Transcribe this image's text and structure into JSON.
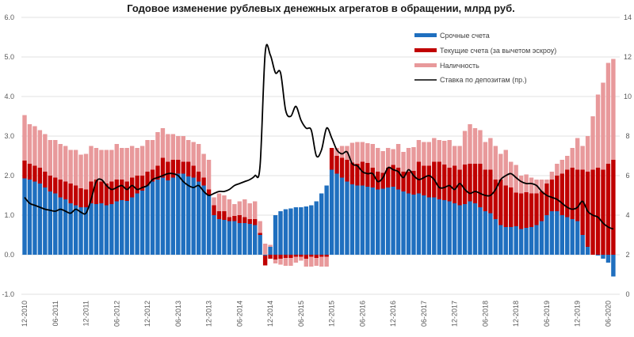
{
  "chart_data": {
    "type": "bar",
    "title": "Годовое изменение рублевых денежных агрегатов в обращении, млрд руб.",
    "start_month": "12-2010",
    "x_tick_labels": [
      "12-2010",
      "06-2011",
      "12-2011",
      "06-2012",
      "12-2012",
      "06-2013",
      "12-2013",
      "06-2014",
      "12-2014",
      "06-2015",
      "12-2015",
      "06-2016",
      "12-2016",
      "06-2017",
      "12-2017",
      "06-2018",
      "12-2018",
      "06-2019",
      "12-2019",
      "06-2020"
    ],
    "ylim": [
      -1.0,
      6.0
    ],
    "y_ticks": [
      "-1.0",
      "0.0",
      "1.0",
      "2.0",
      "3.0",
      "4.0",
      "5.0",
      "6.0"
    ],
    "y2lim": [
      0,
      14
    ],
    "y2_ticks": [
      "0",
      "2",
      "4",
      "6",
      "8",
      "10",
      "12",
      "14"
    ],
    "grid": true,
    "legend_position": "top-right",
    "series": [
      {
        "name": "Срочные счета",
        "kind": "bar",
        "color": "#1f6fbf",
        "values": [
          1.93,
          1.9,
          1.85,
          1.8,
          1.7,
          1.6,
          1.55,
          1.45,
          1.4,
          1.3,
          1.25,
          1.2,
          1.2,
          1.3,
          1.28,
          1.3,
          1.25,
          1.28,
          1.35,
          1.38,
          1.36,
          1.45,
          1.55,
          1.62,
          1.75,
          1.85,
          1.9,
          1.95,
          1.88,
          1.95,
          2.05,
          2.05,
          1.98,
          1.95,
          1.85,
          1.75,
          1.5,
          1.0,
          0.9,
          0.88,
          0.85,
          0.85,
          0.8,
          0.8,
          0.78,
          0.75,
          0.5,
          -0.02,
          0.2,
          1.0,
          1.1,
          1.15,
          1.17,
          1.2,
          1.2,
          1.22,
          1.25,
          1.35,
          1.55,
          1.75,
          2.15,
          2.05,
          1.95,
          1.85,
          1.78,
          1.75,
          1.75,
          1.72,
          1.7,
          1.65,
          1.67,
          1.7,
          1.72,
          1.65,
          1.6,
          1.55,
          1.52,
          1.55,
          1.5,
          1.45,
          1.45,
          1.4,
          1.38,
          1.35,
          1.3,
          1.25,
          1.28,
          1.35,
          1.3,
          1.2,
          1.1,
          1.05,
          0.9,
          0.75,
          0.7,
          0.7,
          0.72,
          0.65,
          0.68,
          0.7,
          0.75,
          0.85,
          1.0,
          1.1,
          1.1,
          1.0,
          0.95,
          0.9,
          0.85,
          0.5,
          0.2,
          0.0,
          -0.02,
          -0.1,
          -0.2,
          -0.55
        ]
      },
      {
        "name": "Текущие счета (за вычетом эскроу)",
        "kind": "bar",
        "color": "#c00000",
        "values": [
          0.45,
          0.4,
          0.4,
          0.4,
          0.4,
          0.4,
          0.4,
          0.45,
          0.45,
          0.5,
          0.5,
          0.48,
          0.45,
          0.55,
          0.62,
          0.55,
          0.55,
          0.57,
          0.55,
          0.52,
          0.49,
          0.5,
          0.45,
          0.38,
          0.35,
          0.3,
          0.35,
          0.5,
          0.47,
          0.45,
          0.35,
          0.3,
          0.37,
          0.3,
          0.25,
          0.2,
          0.15,
          0.25,
          0.2,
          0.22,
          0.1,
          0.13,
          0.2,
          0.15,
          0.12,
          0.15,
          0.05,
          -0.25,
          -0.1,
          -0.12,
          -0.1,
          -0.08,
          -0.08,
          -0.05,
          -0.05,
          -0.1,
          -0.05,
          -0.08,
          -0.05,
          -0.05,
          0.55,
          0.45,
          0.5,
          0.55,
          0.55,
          0.55,
          0.6,
          0.6,
          0.5,
          0.45,
          0.4,
          0.5,
          0.55,
          0.55,
          0.5,
          0.55,
          0.6,
          0.8,
          0.75,
          0.8,
          0.9,
          0.95,
          0.9,
          0.85,
          0.95,
          0.9,
          1.0,
          0.95,
          1.0,
          1.1,
          1.05,
          1.1,
          1.0,
          1.15,
          1.05,
          1.0,
          0.85,
          0.9,
          0.9,
          0.85,
          0.8,
          0.75,
          0.8,
          0.8,
          0.9,
          1.05,
          1.2,
          1.3,
          1.3,
          1.65,
          1.9,
          2.15,
          2.2,
          2.15,
          2.3,
          2.4
        ]
      },
      {
        "name": "Наличность",
        "kind": "bar",
        "color": "#e8999b",
        "values": [
          1.15,
          1.0,
          1.0,
          0.95,
          0.95,
          0.9,
          0.95,
          0.9,
          0.9,
          0.85,
          0.9,
          0.85,
          0.9,
          0.9,
          0.8,
          0.8,
          0.85,
          0.8,
          0.9,
          0.8,
          0.85,
          0.8,
          0.7,
          0.75,
          0.8,
          0.75,
          0.85,
          0.75,
          0.7,
          0.65,
          0.6,
          0.65,
          0.55,
          0.6,
          0.7,
          0.6,
          0.75,
          0.2,
          0.45,
          0.4,
          0.45,
          0.3,
          0.35,
          0.45,
          0.4,
          0.45,
          0.3,
          0.28,
          0.05,
          -0.1,
          -0.15,
          -0.2,
          -0.2,
          -0.15,
          -0.1,
          -0.2,
          -0.25,
          -0.2,
          -0.25,
          -0.25,
          0.0,
          0.2,
          0.3,
          0.35,
          0.5,
          0.55,
          0.5,
          0.5,
          0.6,
          0.6,
          0.55,
          0.5,
          0.4,
          0.6,
          0.5,
          0.6,
          0.6,
          0.55,
          0.6,
          0.6,
          0.6,
          0.55,
          0.6,
          0.7,
          0.5,
          0.6,
          0.85,
          1.0,
          0.9,
          0.85,
          0.7,
          0.8,
          0.85,
          0.65,
          0.9,
          0.65,
          0.7,
          0.45,
          0.45,
          0.4,
          0.35,
          0.3,
          0.1,
          0.2,
          0.3,
          0.35,
          0.35,
          0.5,
          0.8,
          0.6,
          0.9,
          1.35,
          1.85,
          2.2,
          2.55,
          2.55
        ]
      },
      {
        "name": "Ставка по депозитам (пр.)",
        "kind": "line",
        "axis": "right",
        "color": "#000000",
        "values": [
          4.9,
          4.6,
          4.5,
          4.4,
          4.3,
          4.25,
          4.2,
          4.3,
          4.2,
          4.1,
          4.3,
          4.15,
          4.1,
          4.8,
          5.7,
          5.8,
          5.5,
          5.3,
          5.4,
          5.5,
          5.3,
          5.5,
          5.3,
          5.4,
          5.5,
          5.8,
          5.9,
          6.0,
          6.1,
          6.1,
          6.0,
          5.7,
          5.5,
          5.4,
          5.5,
          5.2,
          5.0,
          5.1,
          5.2,
          5.2,
          5.3,
          5.5,
          5.6,
          5.7,
          5.8,
          6.0,
          6.5,
          12.2,
          12.1,
          11.2,
          11.2,
          9.3,
          9.0,
          9.5,
          8.8,
          8.4,
          8.3,
          7.0,
          7.3,
          8.4,
          7.9,
          7.3,
          7.1,
          7.2,
          6.6,
          6.5,
          6.2,
          6.1,
          6.1,
          5.7,
          5.9,
          6.4,
          6.3,
          6.2,
          5.9,
          6.3,
          6.0,
          5.8,
          5.9,
          6.0,
          5.8,
          5.4,
          5.4,
          5.5,
          5.3,
          5.6,
          5.3,
          5.1,
          5.2,
          5.1,
          5.0,
          5.0,
          5.3,
          5.8,
          6.0,
          6.1,
          5.9,
          5.7,
          5.6,
          5.6,
          5.5,
          5.2,
          5.0,
          4.9,
          4.8,
          4.6,
          4.4,
          4.3,
          4.4,
          4.7,
          4.2,
          4.0,
          3.9,
          3.6,
          3.4,
          3.3
        ]
      }
    ]
  }
}
